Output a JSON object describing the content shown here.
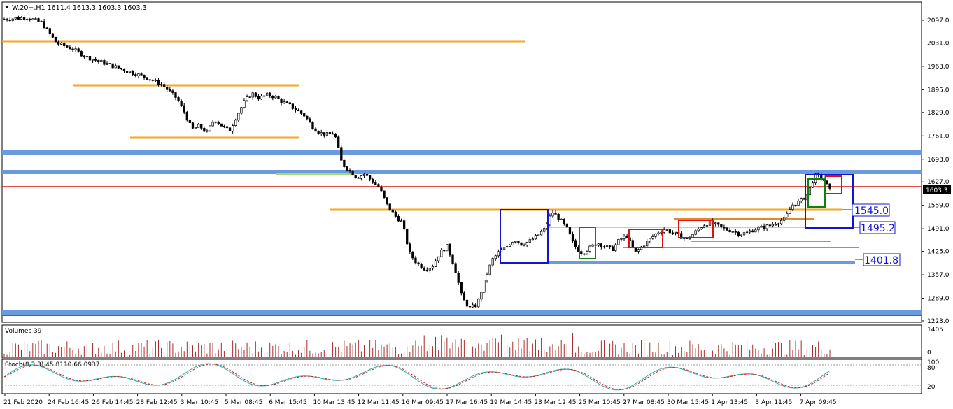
{
  "header": {
    "symbol_line": "W.20+,H1  1611.4 1613.3 1603.3 1603.3"
  },
  "price_axis": {
    "ticks": [
      "2097.0",
      "2031.0",
      "1963.0",
      "1895.0",
      "1829.0",
      "1761.0",
      "1693.0",
      "1627.0",
      "1559.0",
      "1491.0",
      "1425.0",
      "1357.0",
      "1289.0",
      "1223.0"
    ],
    "current_price": "1603.3"
  },
  "time_axis": {
    "labels": [
      "21 Feb 2020",
      "24 Feb 16:45",
      "26 Feb 14:45",
      "28 Feb 12:45",
      "3 Mar 10:45",
      "5 Mar 08:45",
      "6 Mar 15:45",
      "10 Mar 13:45",
      "12 Mar 11:45",
      "16 Mar 09:45",
      "17 Mar 16:45",
      "19 Mar 14:45",
      "23 Mar 12:45",
      "25 Mar 10:45",
      "27 Mar 08:45",
      "30 Mar 15:45",
      "1 Apr 13:45",
      "3 Apr 11:45",
      "7 Apr 09:45"
    ]
  },
  "annotations": {
    "level_1": "1545.0",
    "level_2": "1495.2",
    "level_3": "1401.8"
  },
  "volume_panel": {
    "label": "Volumes 39",
    "max_tick": "1405",
    "min_tick": "0"
  },
  "stoch_panel": {
    "label": "Stoch(8,3,3) 45.8110 66.0937",
    "tick_high": "100",
    "tick_80": "80",
    "tick_20": "20"
  },
  "colors": {
    "candle": "#000000",
    "orange_level": "#F5A623",
    "blue_level": "#6A9BE0",
    "red_level": "#E01010",
    "box_blue": "#1414D0",
    "box_red": "#E01010",
    "box_green": "#108010",
    "volume_bar": "#A52A2A",
    "stoch_main": "#20B2AA",
    "stoch_signal": "#D02020"
  },
  "chart_data": {
    "type": "candlestick",
    "timeframe": "H1",
    "ylim": [
      1223,
      2097
    ],
    "levels_horizontal": [
      2040,
      1905,
      1754,
      1715,
      1655,
      1613,
      1545,
      1495,
      1440,
      1401.8,
      1240
    ],
    "close_path": [
      [
        0,
        2100
      ],
      [
        3,
        2105
      ],
      [
        5,
        2090
      ],
      [
        7,
        2030
      ],
      [
        9,
        2015
      ],
      [
        11,
        1990
      ],
      [
        13,
        1975
      ],
      [
        15,
        1960
      ],
      [
        17,
        1945
      ],
      [
        19,
        1930
      ],
      [
        21,
        1910
      ],
      [
        23,
        1870
      ],
      [
        24,
        1830
      ],
      [
        25,
        1780
      ],
      [
        26,
        1790
      ],
      [
        27,
        1770
      ],
      [
        28,
        1810
      ],
      [
        29,
        1790
      ],
      [
        30,
        1775
      ],
      [
        31,
        1820
      ],
      [
        32,
        1860
      ],
      [
        33,
        1885
      ],
      [
        34,
        1870
      ],
      [
        35,
        1880
      ],
      [
        36,
        1875
      ],
      [
        37,
        1860
      ],
      [
        38,
        1850
      ],
      [
        39,
        1835
      ],
      [
        40,
        1820
      ],
      [
        41,
        1790
      ],
      [
        42,
        1770
      ],
      [
        43,
        1765
      ],
      [
        44,
        1770
      ],
      [
        45,
        1680
      ],
      [
        46,
        1660
      ],
      [
        47,
        1640
      ],
      [
        48,
        1650
      ],
      [
        49,
        1630
      ],
      [
        50,
        1610
      ],
      [
        51,
        1560
      ],
      [
        52,
        1530
      ],
      [
        53,
        1510
      ],
      [
        54,
        1420
      ],
      [
        55,
        1390
      ],
      [
        56,
        1375
      ],
      [
        57,
        1380
      ],
      [
        58,
        1420
      ],
      [
        59,
        1440
      ],
      [
        60,
        1380
      ],
      [
        61,
        1290
      ],
      [
        62,
        1260
      ],
      [
        63,
        1270
      ],
      [
        64,
        1340
      ],
      [
        65,
        1400
      ],
      [
        66,
        1425
      ],
      [
        67,
        1440
      ],
      [
        68,
        1460
      ],
      [
        69,
        1445
      ],
      [
        70,
        1455
      ],
      [
        71,
        1470
      ],
      [
        72,
        1490
      ],
      [
        73,
        1540
      ],
      [
        74,
        1520
      ],
      [
        75,
        1490
      ],
      [
        76,
        1440
      ],
      [
        77,
        1420
      ],
      [
        78,
        1435
      ],
      [
        79,
        1450
      ],
      [
        80,
        1440
      ],
      [
        81,
        1430
      ],
      [
        82,
        1460
      ],
      [
        83,
        1470
      ],
      [
        84,
        1420
      ],
      [
        85,
        1440
      ],
      [
        86,
        1460
      ],
      [
        87,
        1480
      ],
      [
        88,
        1490
      ],
      [
        89,
        1480
      ],
      [
        90,
        1470
      ],
      [
        91,
        1460
      ],
      [
        92,
        1480
      ],
      [
        93,
        1500
      ],
      [
        94,
        1510
      ],
      [
        95,
        1500
      ],
      [
        96,
        1490
      ],
      [
        97,
        1485
      ],
      [
        98,
        1475
      ],
      [
        99,
        1480
      ],
      [
        100,
        1490
      ],
      [
        101,
        1495
      ],
      [
        102,
        1500
      ],
      [
        103,
        1510
      ],
      [
        104,
        1520
      ],
      [
        105,
        1560
      ],
      [
        106,
        1570
      ],
      [
        107,
        1590
      ],
      [
        108,
        1645
      ],
      [
        109,
        1640
      ],
      [
        110,
        1603
      ]
    ]
  }
}
